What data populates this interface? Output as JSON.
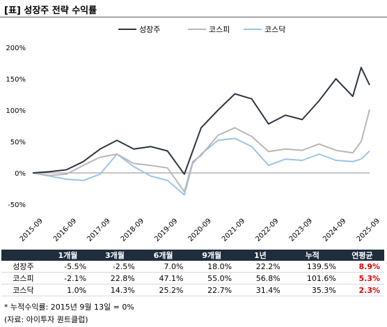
{
  "title": "[표] 성장주 전략 수익률",
  "chart_data": {
    "type": "line",
    "title": "[표] 성장주 전략 수익률",
    "xlabel": "",
    "ylabel": "",
    "ylim": [
      -50,
      200
    ],
    "yticks": [
      "200%",
      "150%",
      "100%",
      "50%",
      "0%",
      "-50%"
    ],
    "ytick_values": [
      200,
      150,
      100,
      50,
      0,
      -50
    ],
    "xticks": [
      "2015-09",
      "2016-09",
      "2017-09",
      "2018-09",
      "2019-09",
      "2020-09",
      "2021-09",
      "2022-09",
      "2023-09",
      "2024-09",
      "2025-09"
    ],
    "legend_position": "top",
    "grid": false,
    "x": [
      "2015-09",
      "2016-03",
      "2016-09",
      "2017-03",
      "2017-09",
      "2018-03",
      "2018-09",
      "2019-03",
      "2019-09",
      "2020-03",
      "2020-06",
      "2020-09",
      "2021-03",
      "2021-09",
      "2022-03",
      "2022-09",
      "2023-03",
      "2023-09",
      "2024-03",
      "2024-09",
      "2025-03",
      "2025-06",
      "2025-09"
    ],
    "series": [
      {
        "name": "성장주",
        "color": "#2b3440",
        "values": [
          0,
          2,
          5,
          18,
          38,
          52,
          38,
          42,
          35,
          -2,
          35,
          72,
          100,
          126,
          118,
          78,
          92,
          85,
          115,
          150,
          122,
          168,
          140
        ]
      },
      {
        "name": "코스피",
        "color": "#b8b8b8",
        "values": [
          0,
          -4,
          -2,
          12,
          25,
          30,
          15,
          12,
          8,
          -30,
          18,
          28,
          60,
          72,
          58,
          34,
          38,
          36,
          46,
          36,
          32,
          50,
          101
        ]
      },
      {
        "name": "코스닥",
        "color": "#9dc3e6",
        "values": [
          0,
          -5,
          -10,
          -12,
          -2,
          30,
          10,
          -5,
          -12,
          -35,
          15,
          30,
          52,
          55,
          42,
          12,
          22,
          20,
          30,
          20,
          18,
          22,
          35
        ]
      }
    ]
  },
  "table": {
    "headers": [
      "",
      "1개월",
      "3개월",
      "6개월",
      "9개월",
      "1년",
      "누적",
      "연평균"
    ],
    "rows": [
      [
        "성장주",
        "-5.5%",
        "-2.5%",
        "7.0%",
        "18.0%",
        "22.2%",
        "139.5%",
        "8.9%"
      ],
      [
        "코스피",
        "-2.1%",
        "22.8%",
        "47.1%",
        "55.0%",
        "56.8%",
        "101.6%",
        "5.3%"
      ],
      [
        "코스닥",
        "1.0%",
        "14.3%",
        "25.2%",
        "22.7%",
        "31.4%",
        "35.3%",
        "2.3%"
      ]
    ]
  },
  "notes": [
    "* 누적수익률: 2015년 9월 13일 = 0%",
    "(자료: 아이투자 퀀트클럽)"
  ]
}
